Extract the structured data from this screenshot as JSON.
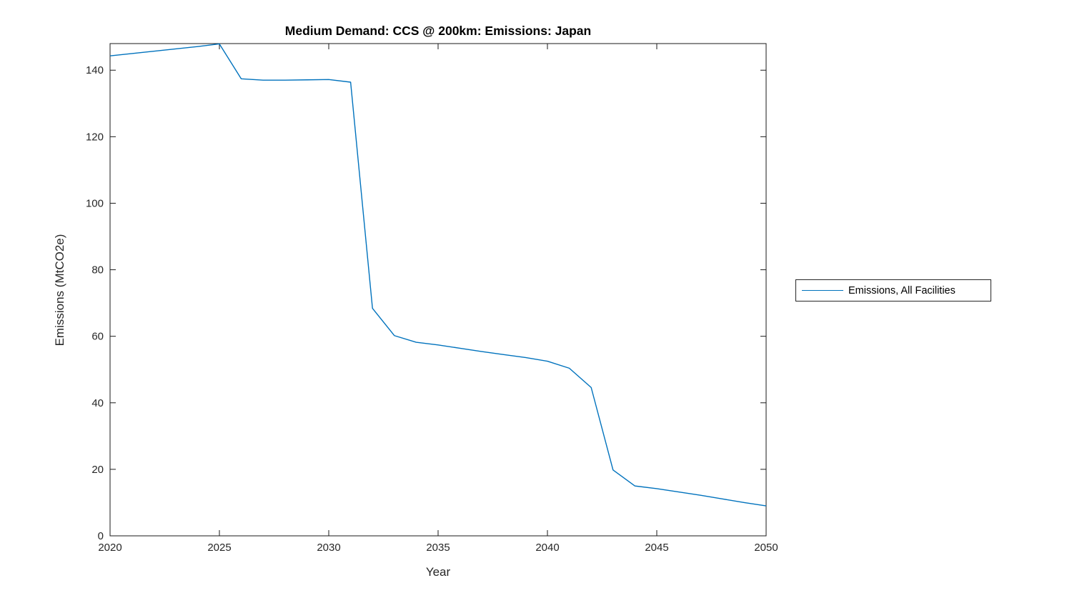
{
  "figure": {
    "background": "#ffffff"
  },
  "chart_data": {
    "type": "line",
    "title": "Medium Demand: CCS @ 200km: Emissions: Japan",
    "xlabel": "Year",
    "ylabel": "Emissions (MtCO2e)",
    "xlim": [
      2020,
      2050
    ],
    "ylim": [
      0,
      148
    ],
    "xticks": [
      2020,
      2025,
      2030,
      2035,
      2040,
      2045,
      2050
    ],
    "yticks": [
      0,
      20,
      40,
      60,
      80,
      100,
      120,
      140
    ],
    "grid": false,
    "box": true,
    "tick_direction": "in",
    "legend_position": "right-outside",
    "axis_color": "#1a1a1a",
    "tick_label_color": "#262626",
    "series": [
      {
        "name": "Emissions, All Facilities",
        "color": "#0072BD",
        "x": [
          2020,
          2021,
          2022,
          2023,
          2024,
          2025,
          2026,
          2027,
          2028,
          2029,
          2030,
          2031,
          2032,
          2033,
          2034,
          2035,
          2036,
          2037,
          2038,
          2039,
          2040,
          2041,
          2042,
          2043,
          2044,
          2045,
          2046,
          2047,
          2048,
          2049,
          2050
        ],
        "y": [
          144.3,
          145.0,
          145.7,
          146.4,
          147.1,
          147.9,
          137.4,
          137.0,
          137.0,
          137.1,
          137.2,
          136.4,
          68.4,
          60.2,
          58.2,
          57.4,
          56.4,
          55.4,
          54.5,
          53.6,
          52.5,
          50.4,
          44.6,
          19.8,
          15.0,
          14.2,
          13.2,
          12.2,
          11.1,
          10.0,
          9.0
        ]
      }
    ],
    "legend": [
      "Emissions, All Facilities"
    ]
  }
}
